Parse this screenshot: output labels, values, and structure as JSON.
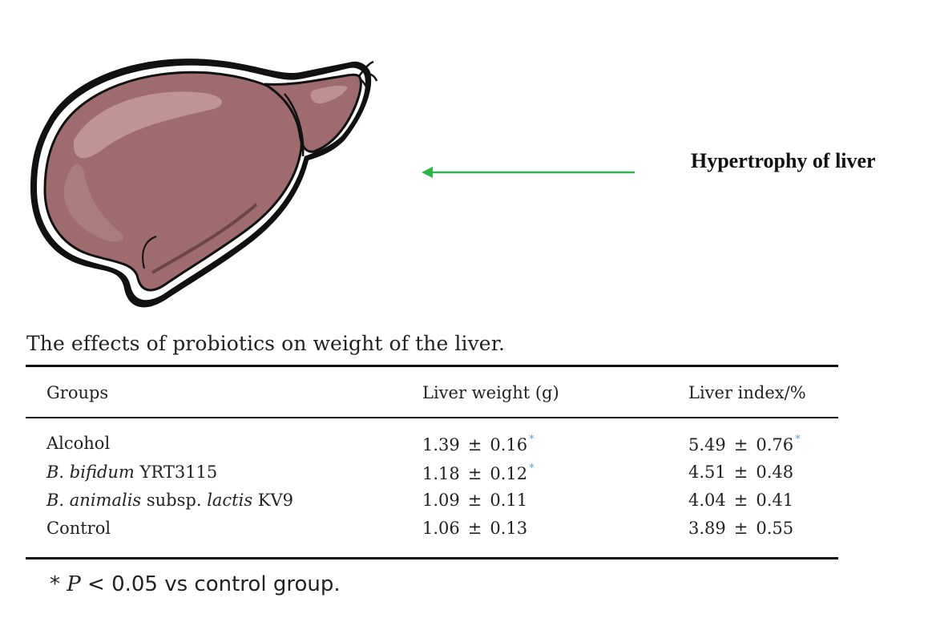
{
  "figure": {
    "annotation": "Hypertrophy of liver",
    "arrow_color": "#2db34a",
    "liver_color": "#9e6b6e",
    "liver_highlight": "#c69a9b",
    "liver_shadow": "#6e4547"
  },
  "table": {
    "caption": "The effects of probiotics on weight of the liver.",
    "headers": [
      "Groups",
      "Liver weight (g)",
      "Liver index/%"
    ],
    "rows": [
      {
        "group_parts": [
          {
            "text": "Alcohol",
            "italic": false
          }
        ],
        "weight_mean": "1.39",
        "weight_sd": "0.16",
        "weight_sig": "*",
        "index_mean": "5.49",
        "index_sd": "0.76",
        "index_sig": "*"
      },
      {
        "group_parts": [
          {
            "text": "B. bifidum",
            "italic": true
          },
          {
            "text": " YRT3115",
            "italic": false
          }
        ],
        "weight_mean": "1.18",
        "weight_sd": "0.12",
        "weight_sig": "*",
        "index_mean": "4.51",
        "index_sd": "0.48",
        "index_sig": ""
      },
      {
        "group_parts": [
          {
            "text": "B. animalis",
            "italic": true
          },
          {
            "text": " subsp. ",
            "italic": false
          },
          {
            "text": "lactis",
            "italic": true
          },
          {
            "text": " KV9",
            "italic": false
          }
        ],
        "weight_mean": "1.09",
        "weight_sd": "0.11",
        "weight_sig": "",
        "index_mean": "4.04",
        "index_sd": "0.41",
        "index_sig": ""
      },
      {
        "group_parts": [
          {
            "text": "Control",
            "italic": false
          }
        ],
        "weight_mean": "1.06",
        "weight_sd": "0.13",
        "weight_sig": "",
        "index_mean": "3.89",
        "index_sd": "0.55",
        "index_sig": ""
      }
    ],
    "pm_symbol": "±",
    "footnote": {
      "star": "*",
      "p": "P",
      "rest": " < 0.05 vs control group."
    }
  }
}
